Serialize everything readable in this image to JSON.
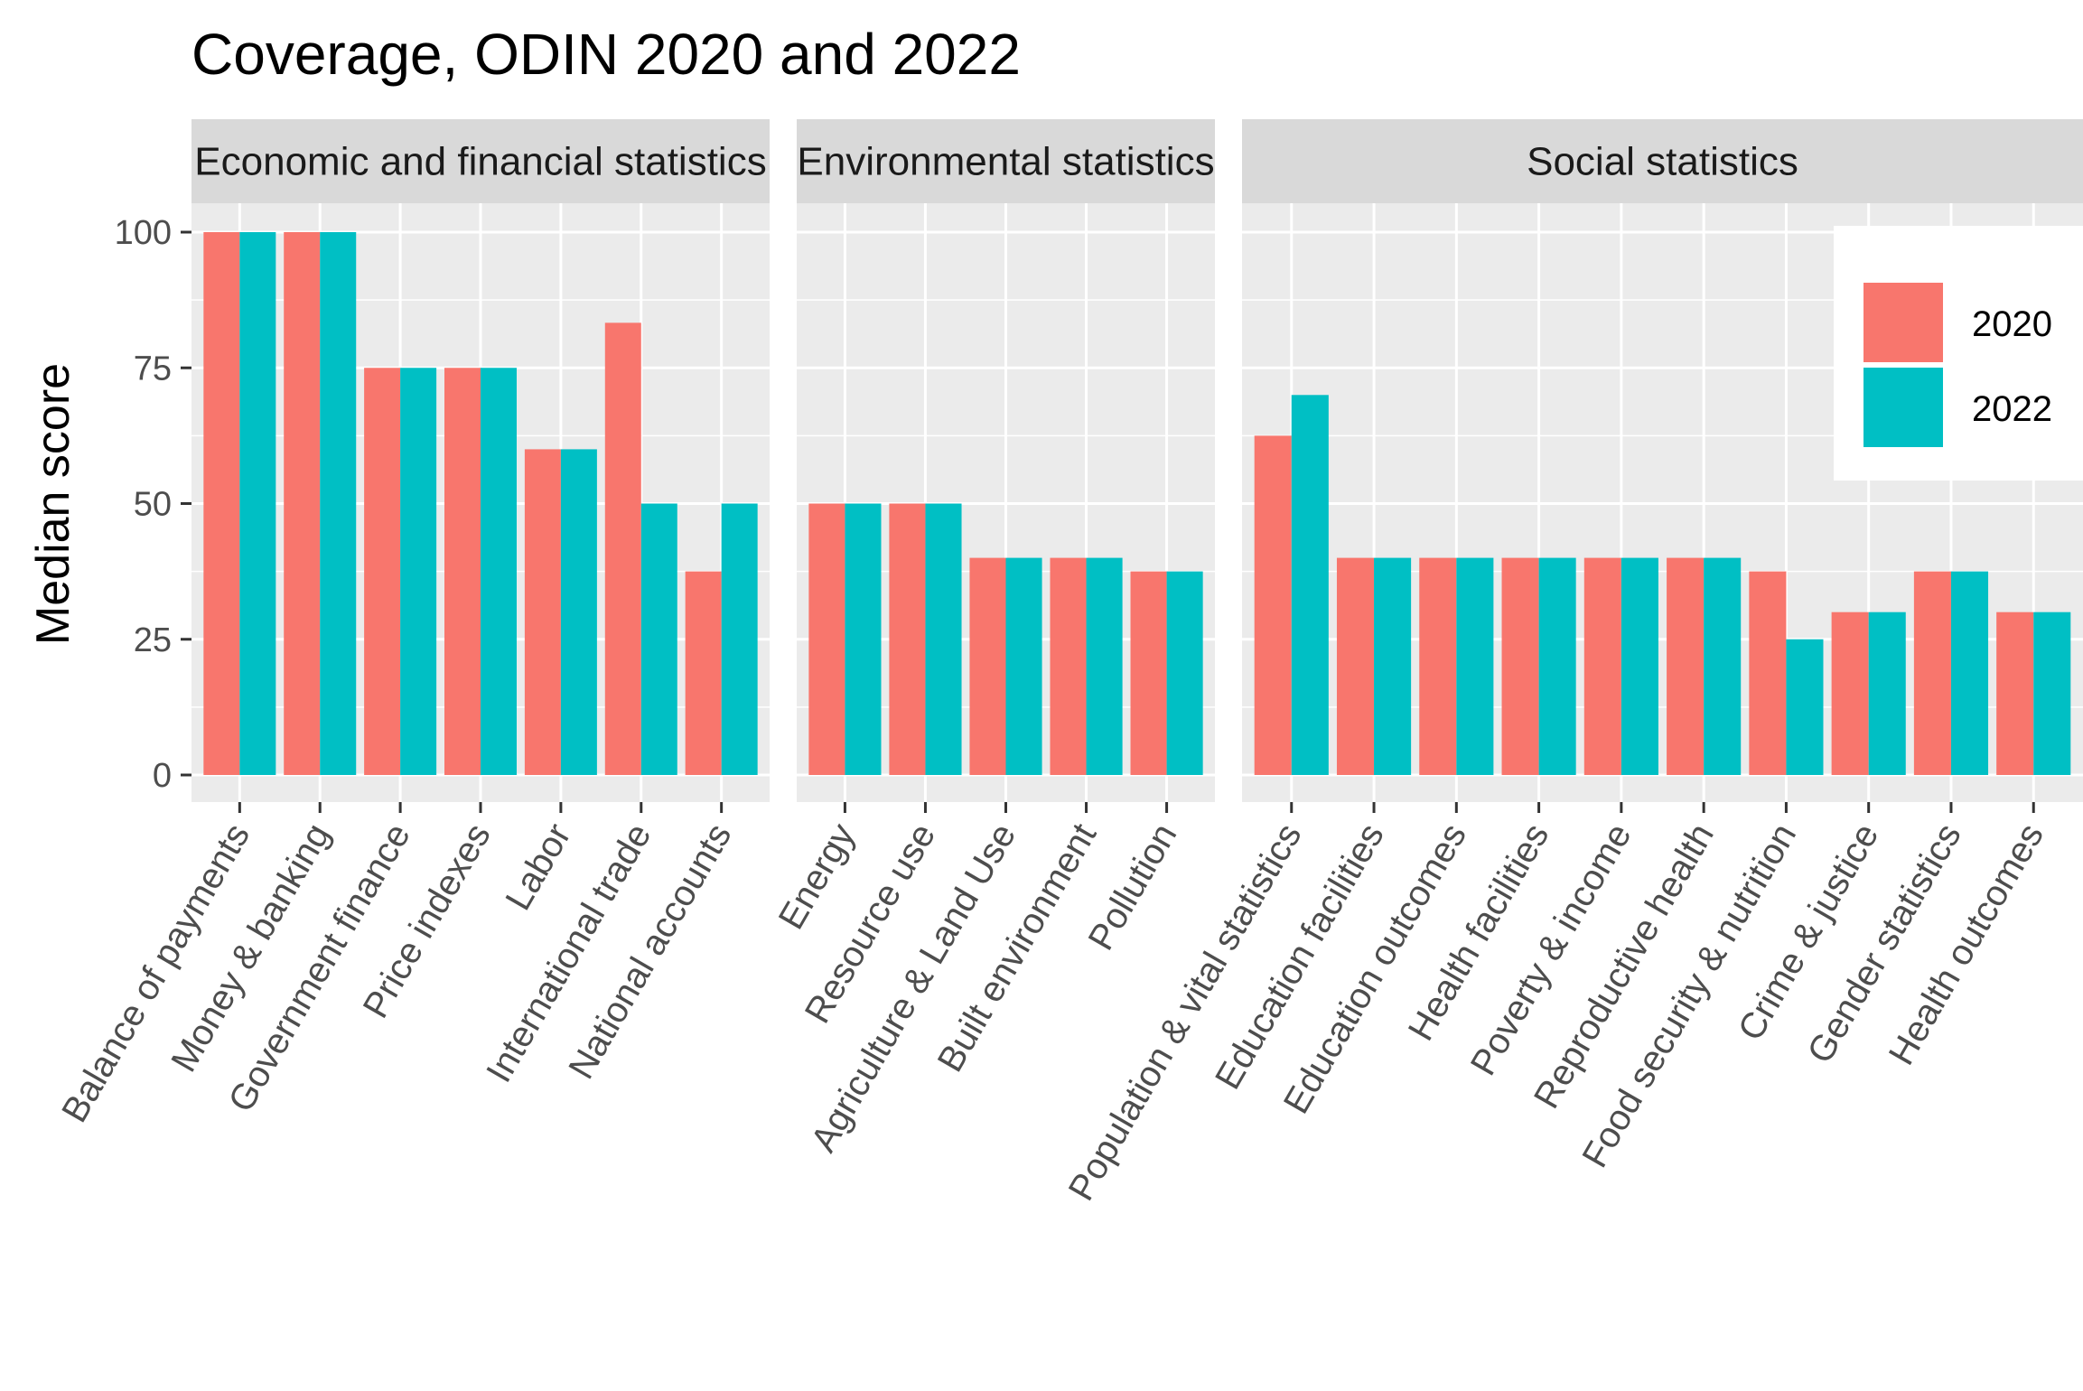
{
  "chart_data": {
    "type": "bar",
    "title": "Coverage, ODIN 2020 and 2022",
    "xlabel": "",
    "ylabel": "Median score",
    "ylim": [
      0,
      100
    ],
    "yticks": [
      0,
      25,
      50,
      75,
      100
    ],
    "grid": true,
    "legend": {
      "placement": "right",
      "entries": [
        "2020",
        "2022"
      ]
    },
    "colors": {
      "2020": "#F8766D",
      "2022": "#00BFC4",
      "panel": "#EBEBEB",
      "strip": "#D9D9D9"
    },
    "facets": [
      {
        "label": "Economic and financial statistics",
        "categories": [
          "Balance of payments",
          "Money & banking",
          "Government finance",
          "Price indexes",
          "Labor",
          "International trade",
          "National accounts"
        ],
        "series": [
          {
            "name": "2020",
            "values": [
              100,
              100,
              75,
              75,
              60,
              83.3,
              37.5
            ]
          },
          {
            "name": "2022",
            "values": [
              100,
              100,
              75,
              75,
              60,
              50,
              50
            ]
          }
        ]
      },
      {
        "label": "Environmental statistics",
        "categories": [
          "Energy",
          "Resource use",
          "Agriculture & Land Use",
          "Built environment",
          "Pollution"
        ],
        "series": [
          {
            "name": "2020",
            "values": [
              50,
              50,
              40,
              40,
              37.5
            ]
          },
          {
            "name": "2022",
            "values": [
              50,
              50,
              40,
              40,
              37.5
            ]
          }
        ]
      },
      {
        "label": "Social statistics",
        "categories": [
          "Population & vital statistics",
          "Education facilities",
          "Education outcomes",
          "Health facilities",
          "Poverty & income",
          "Reproductive health",
          "Food security & nutrition",
          "Crime & justice",
          "Gender statistics",
          "Health outcomes"
        ],
        "series": [
          {
            "name": "2020",
            "values": [
              62.5,
              40,
              40,
              40,
              40,
              40,
              37.5,
              30,
              37.5,
              30
            ]
          },
          {
            "name": "2022",
            "values": [
              70,
              40,
              40,
              40,
              40,
              40,
              25,
              30,
              37.5,
              30
            ]
          }
        ]
      }
    ]
  }
}
